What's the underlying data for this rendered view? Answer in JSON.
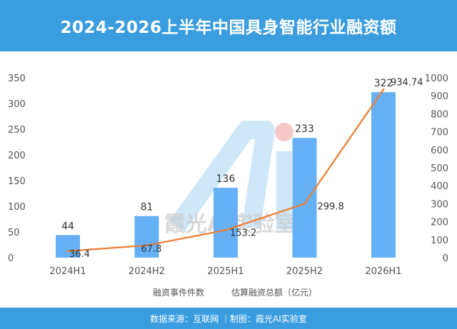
{
  "header": {
    "title": "2024-2026上半年中国具身智能行业融资额"
  },
  "footer": {
    "source": "数据来源：互联网 ｜制图：霞光AI实验室"
  },
  "watermark": {
    "text": "霞光AI实验室"
  },
  "colors": {
    "header_bg": "#3a9de0",
    "bar": "#66b0f6",
    "line": "#ec7c30",
    "axis_text": "#555555"
  },
  "chart_data": {
    "type": "bar",
    "categories": [
      "2024H1",
      "2024H2",
      "2025H1",
      "2025H2",
      "2026H1"
    ],
    "series": [
      {
        "name": "融资事件件数",
        "type": "bar",
        "axis": "left",
        "values": [
          44,
          81,
          136,
          233,
          322
        ],
        "labels": [
          "44",
          "81",
          "136",
          "233",
          "322"
        ]
      },
      {
        "name": "估算融资总额（亿元）",
        "type": "line",
        "axis": "right",
        "values": [
          36.4,
          67.8,
          153.2,
          299.8,
          934.74
        ],
        "labels": [
          "36.4",
          "67.8",
          "153.2",
          "299.8",
          "934.74"
        ]
      }
    ],
    "y_left": {
      "min": 0,
      "max": 350,
      "ticks": [
        "0",
        "50",
        "100",
        "150",
        "200",
        "250",
        "300",
        "350"
      ]
    },
    "y_right": {
      "min": 0,
      "max": 1000,
      "ticks": [
        "0",
        "100",
        "200",
        "300",
        "400",
        "500",
        "600",
        "700",
        "800",
        "900",
        "1000"
      ]
    },
    "legend_position": "bottom",
    "grid": false
  }
}
